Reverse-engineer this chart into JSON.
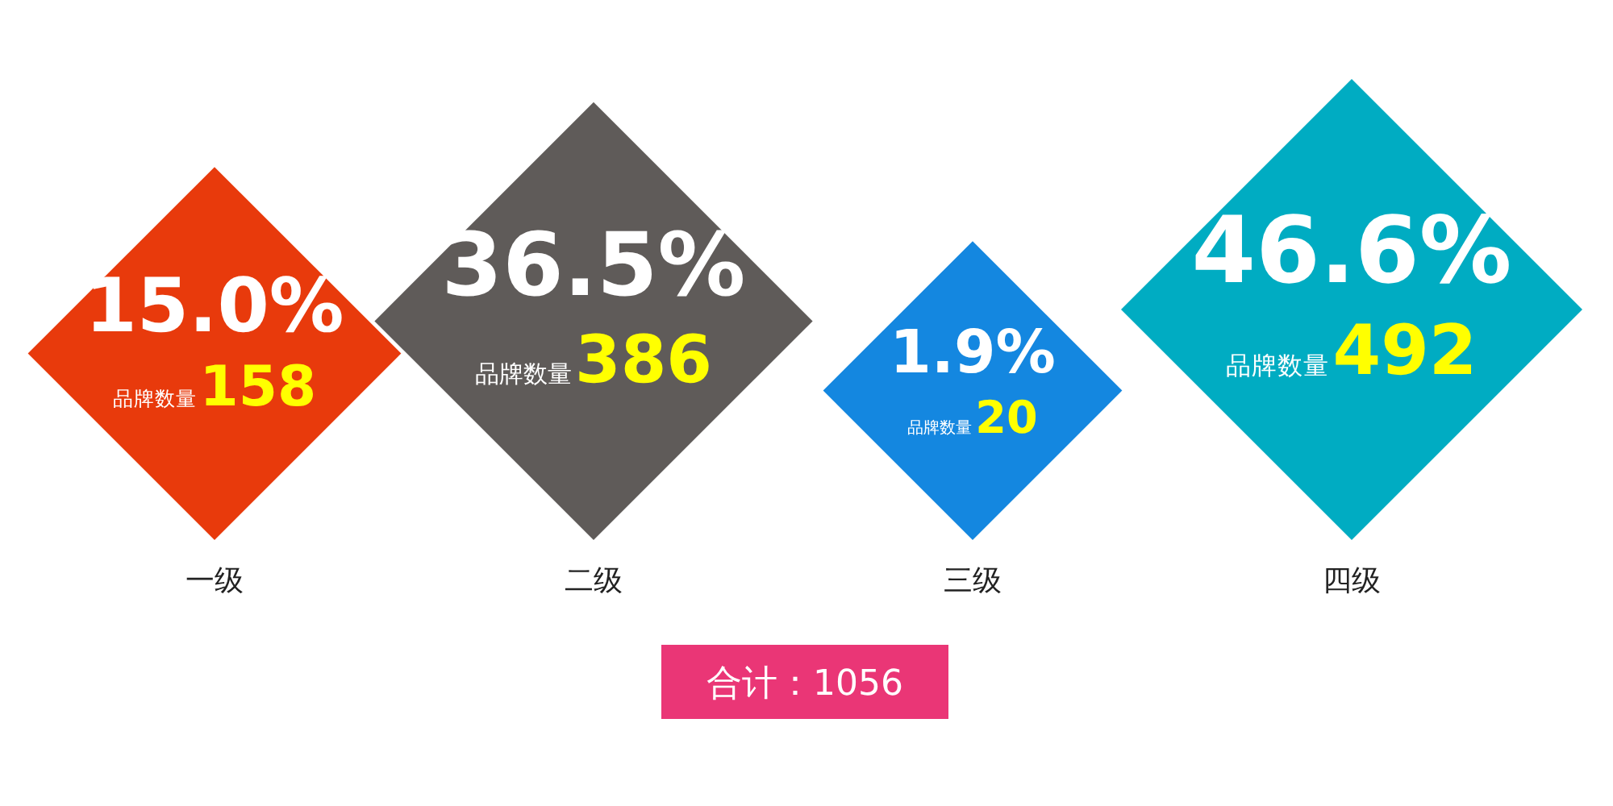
{
  "chart_data": {
    "type": "other",
    "categories": [
      "一级",
      "二级",
      "三级",
      "四级"
    ],
    "series": [
      {
        "name": "品牌数量",
        "values": [
          158,
          386,
          20,
          492
        ]
      }
    ],
    "colors": [
      "#e83a0c",
      "#5f5b59",
      "#1487e0",
      "#00acc2"
    ],
    "data_labels": true,
    "annotations": [
      {
        "text": "15.0%",
        "x": "一级"
      },
      {
        "text": "36.5%",
        "x": "二级"
      },
      {
        "text": "1.9%",
        "x": "三级"
      },
      {
        "text": "46.6%",
        "x": "四级"
      },
      "合计：1056"
    ]
  }
}
